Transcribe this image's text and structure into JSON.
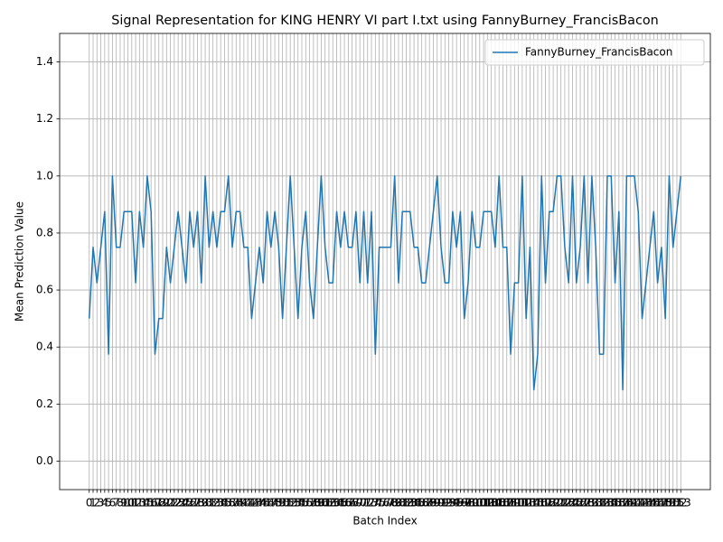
{
  "chart_data": {
    "type": "line",
    "title": "Signal Representation for KING HENRY VI part I.txt using FannyBurney_FrancisBacon",
    "xlabel": "Batch Index",
    "ylabel": "Mean Prediction Value",
    "x": [
      0,
      1,
      2,
      3,
      4,
      5,
      6,
      7,
      8,
      9,
      10,
      11,
      12,
      13,
      14,
      15,
      16,
      17,
      18,
      19,
      20,
      21,
      22,
      23,
      24,
      25,
      26,
      27,
      28,
      29,
      30,
      31,
      32,
      33,
      34,
      35,
      36,
      37,
      38,
      39,
      40,
      41,
      42,
      43,
      44,
      45,
      46,
      47,
      48,
      49,
      50,
      51,
      52,
      53,
      54,
      55,
      56,
      57,
      58,
      59,
      60,
      61,
      62,
      63,
      64,
      65,
      66,
      67,
      68,
      69,
      70,
      71,
      72,
      73,
      74,
      75,
      76,
      77,
      78,
      79,
      80,
      81,
      82,
      83,
      84,
      85,
      86,
      87,
      88,
      89,
      90,
      91,
      92,
      93,
      94,
      95,
      96,
      97,
      98,
      99,
      100,
      101,
      102,
      103,
      104,
      105,
      106,
      107,
      108,
      109,
      110,
      111,
      112,
      113,
      114,
      115,
      116,
      117,
      118,
      119,
      120,
      121,
      122,
      123,
      124,
      125,
      126,
      127,
      128,
      129,
      130,
      131,
      132,
      133,
      134,
      135,
      136,
      137,
      138,
      139,
      140,
      141,
      142,
      143,
      144,
      145,
      146,
      147,
      148,
      149,
      150,
      151,
      152,
      153
    ],
    "series": [
      {
        "name": "FannyBurney_FrancisBacon",
        "color": "#1f77b4",
        "values": [
          0.5,
          0.75,
          0.625,
          0.75,
          0.875,
          0.375,
          1.0,
          0.75,
          0.75,
          0.875,
          0.875,
          0.875,
          0.625,
          0.875,
          0.75,
          1.0,
          0.875,
          0.375,
          0.5,
          0.5,
          0.75,
          0.625,
          0.75,
          0.875,
          0.75,
          0.625,
          0.875,
          0.75,
          0.875,
          0.625,
          1.0,
          0.75,
          0.875,
          0.75,
          0.875,
          0.875,
          1.0,
          0.75,
          0.875,
          0.875,
          0.75,
          0.75,
          0.5,
          0.625,
          0.75,
          0.625,
          0.875,
          0.75,
          0.875,
          0.75,
          0.5,
          0.75,
          1.0,
          0.75,
          0.5,
          0.75,
          0.875,
          0.625,
          0.5,
          0.75,
          1.0,
          0.75,
          0.625,
          0.625,
          0.875,
          0.75,
          0.875,
          0.75,
          0.75,
          0.875,
          0.625,
          0.875,
          0.625,
          0.875,
          0.375,
          0.75,
          0.75,
          0.75,
          0.75,
          1.0,
          0.625,
          0.875,
          0.875,
          0.875,
          0.75,
          0.75,
          0.625,
          0.625,
          0.75,
          0.875,
          1.0,
          0.75,
          0.625,
          0.625,
          0.875,
          0.75,
          0.875,
          0.5,
          0.625,
          0.875,
          0.75,
          0.75,
          0.875,
          0.875,
          0.875,
          0.75,
          1.0,
          0.75,
          0.75,
          0.375,
          0.625,
          0.625,
          1.0,
          0.5,
          0.75,
          0.25,
          0.375,
          1.0,
          0.625,
          0.875,
          0.875,
          1.0,
          1.0,
          0.75,
          0.625,
          1.0,
          0.625,
          0.75,
          1.0,
          0.625,
          1.0,
          0.75,
          0.375,
          0.375,
          1.0,
          1.0,
          0.625,
          0.875,
          0.25,
          1.0,
          1.0,
          1.0,
          0.875,
          0.5,
          0.625,
          0.75,
          0.875,
          0.625,
          0.75,
          0.5,
          1.0,
          0.75,
          0.875,
          1.0
        ]
      }
    ],
    "xlim": [
      -7.65,
      160.65
    ],
    "xticks": [
      0,
      1,
      2,
      3,
      4,
      5,
      6,
      7,
      8,
      9,
      10,
      11,
      12,
      13,
      14,
      15,
      16,
      17,
      18,
      19,
      20,
      21,
      22,
      23,
      24,
      25,
      26,
      27,
      28,
      29,
      30,
      31,
      32,
      33,
      34,
      35,
      36,
      37,
      38,
      39,
      40,
      41,
      42,
      43,
      44,
      45,
      46,
      47,
      48,
      49,
      50,
      51,
      52,
      53,
      54,
      55,
      56,
      57,
      58,
      59,
      60,
      61,
      62,
      63,
      64,
      65,
      66,
      67,
      68,
      69,
      70,
      71,
      72,
      73,
      74,
      75,
      76,
      77,
      78,
      79,
      80,
      81,
      82,
      83,
      84,
      85,
      86,
      87,
      88,
      89,
      90,
      91,
      92,
      93,
      94,
      95,
      96,
      97,
      98,
      99,
      100,
      101,
      102,
      103,
      104,
      105,
      106,
      107,
      108,
      109,
      110,
      111,
      112,
      113,
      114,
      115,
      116,
      117,
      118,
      119,
      120,
      121,
      122,
      123,
      124,
      125,
      126,
      127,
      128,
      129,
      130,
      131,
      132,
      133,
      134,
      135,
      136,
      137,
      138,
      139,
      140,
      141,
      142,
      143,
      144,
      145,
      146,
      147,
      148,
      149,
      150,
      151,
      152,
      153
    ],
    "ylim": [
      -0.1,
      1.5
    ],
    "yticks": [
      {
        "value": 0,
        "label": "0.0"
      },
      0.2,
      0.4,
      0.6,
      0.8,
      {
        "value": 1,
        "label": "1.0"
      },
      1.2,
      1.4
    ],
    "grid": true,
    "legend": "upper right"
  }
}
